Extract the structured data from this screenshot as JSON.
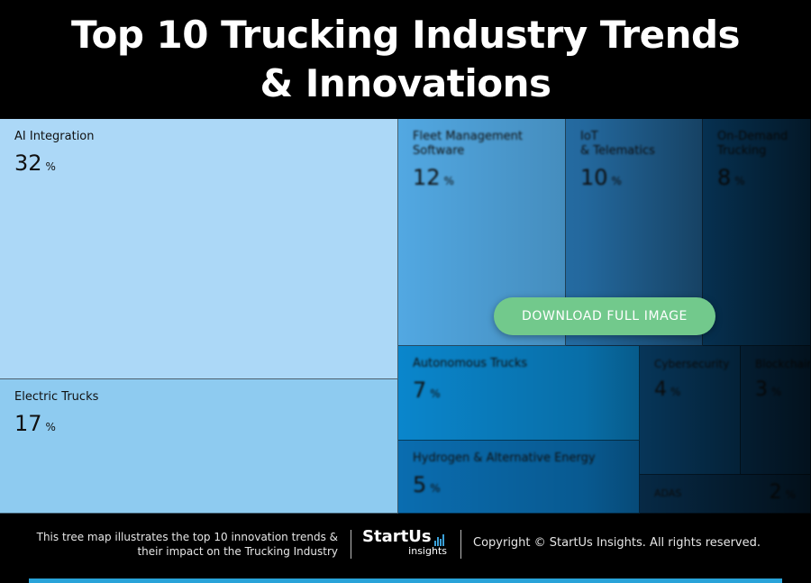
{
  "title": {
    "line1": "Top 10 Trucking Industry Trends",
    "line2": "& Innovations"
  },
  "chart_data": {
    "type": "treemap",
    "unit": "%",
    "items": [
      {
        "label": "AI Integration",
        "value": 32,
        "color": "#acd8f7"
      },
      {
        "label": "Electric Trucks",
        "value": 17,
        "color": "#8ecbf0"
      },
      {
        "label": "Fleet Management\nSoftware",
        "value": 12,
        "color": "#52a8e2"
      },
      {
        "label": "IoT\n& Telematics",
        "value": 10,
        "color": "#2b7fc0"
      },
      {
        "label": "On-Demand\nTrucking",
        "value": 8,
        "color": "#0c5e9c"
      },
      {
        "label": "Autonomous Trucks",
        "value": 7,
        "color": "#0a86cc"
      },
      {
        "label": "Hydrogen & Alternative Energy",
        "value": 5,
        "color": "#0a6db0"
      },
      {
        "label": "Cybersecurity",
        "value": 4,
        "color": "#0a4f83"
      },
      {
        "label": "Blockchain",
        "value": 3,
        "color": "#0a4574"
      },
      {
        "label": "ADAS",
        "value": 2,
        "color": "#0a3d66"
      }
    ]
  },
  "download_button": "DOWNLOAD FULL IMAGE",
  "footer": {
    "description_line1": "This tree map illustrates the top 10 innovation trends &",
    "description_line2": "their impact on the Trucking Industry",
    "logo_main": "StartUs",
    "logo_sub": "insights",
    "copyright": "Copyright © StartUs Insights. All rights reserved."
  },
  "colors": {
    "accent_bar": "#29a3d9",
    "button": "#72c98c"
  }
}
